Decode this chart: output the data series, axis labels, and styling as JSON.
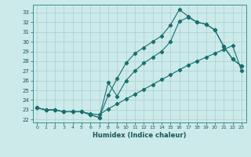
{
  "xlabel": "Humidex (Indice chaleur)",
  "bg_color": "#cceaea",
  "line_color": "#1a6e6e",
  "grid_color": "#aad0d0",
  "xlim": [
    -0.5,
    23.5
  ],
  "ylim": [
    21.7,
    33.8
  ],
  "yticks": [
    22,
    23,
    24,
    25,
    26,
    27,
    28,
    29,
    30,
    31,
    32,
    33
  ],
  "xticks": [
    0,
    1,
    2,
    3,
    4,
    5,
    6,
    7,
    8,
    9,
    10,
    11,
    12,
    13,
    14,
    15,
    16,
    17,
    18,
    19,
    20,
    21,
    22,
    23
  ],
  "line1_x": [
    0,
    1,
    2,
    3,
    4,
    5,
    6,
    7,
    8,
    9,
    10,
    11,
    12,
    13,
    14,
    15,
    16,
    17,
    18,
    19,
    20,
    21,
    22,
    23
  ],
  "line1_y": [
    23.2,
    23.0,
    23.0,
    22.8,
    22.8,
    22.8,
    22.5,
    22.2,
    24.5,
    26.2,
    27.8,
    28.8,
    29.4,
    30.0,
    30.6,
    31.7,
    33.3,
    32.6,
    32.0,
    31.8,
    31.2,
    29.5,
    28.2,
    27.5
  ],
  "line2_x": [
    0,
    1,
    2,
    3,
    4,
    5,
    6,
    7,
    8,
    9,
    10,
    11,
    12,
    13,
    14,
    15,
    16,
    17,
    18,
    19,
    20,
    21,
    22,
    23
  ],
  "line2_y": [
    23.2,
    23.0,
    23.0,
    22.8,
    22.8,
    22.8,
    22.5,
    22.2,
    25.8,
    24.4,
    26.0,
    27.0,
    27.8,
    28.4,
    29.0,
    30.0,
    32.1,
    32.5,
    32.0,
    31.8,
    31.2,
    29.5,
    28.2,
    27.5
  ],
  "line3_x": [
    0,
    1,
    2,
    3,
    4,
    5,
    6,
    7,
    8,
    9,
    10,
    11,
    12,
    13,
    14,
    15,
    16,
    17,
    18,
    19,
    20,
    21,
    22,
    23
  ],
  "line3_y": [
    23.2,
    23.0,
    23.0,
    22.8,
    22.8,
    22.8,
    22.6,
    22.5,
    23.1,
    23.6,
    24.1,
    24.6,
    25.1,
    25.6,
    26.1,
    26.6,
    27.1,
    27.6,
    28.0,
    28.4,
    28.8,
    29.2,
    29.6,
    27.0
  ]
}
